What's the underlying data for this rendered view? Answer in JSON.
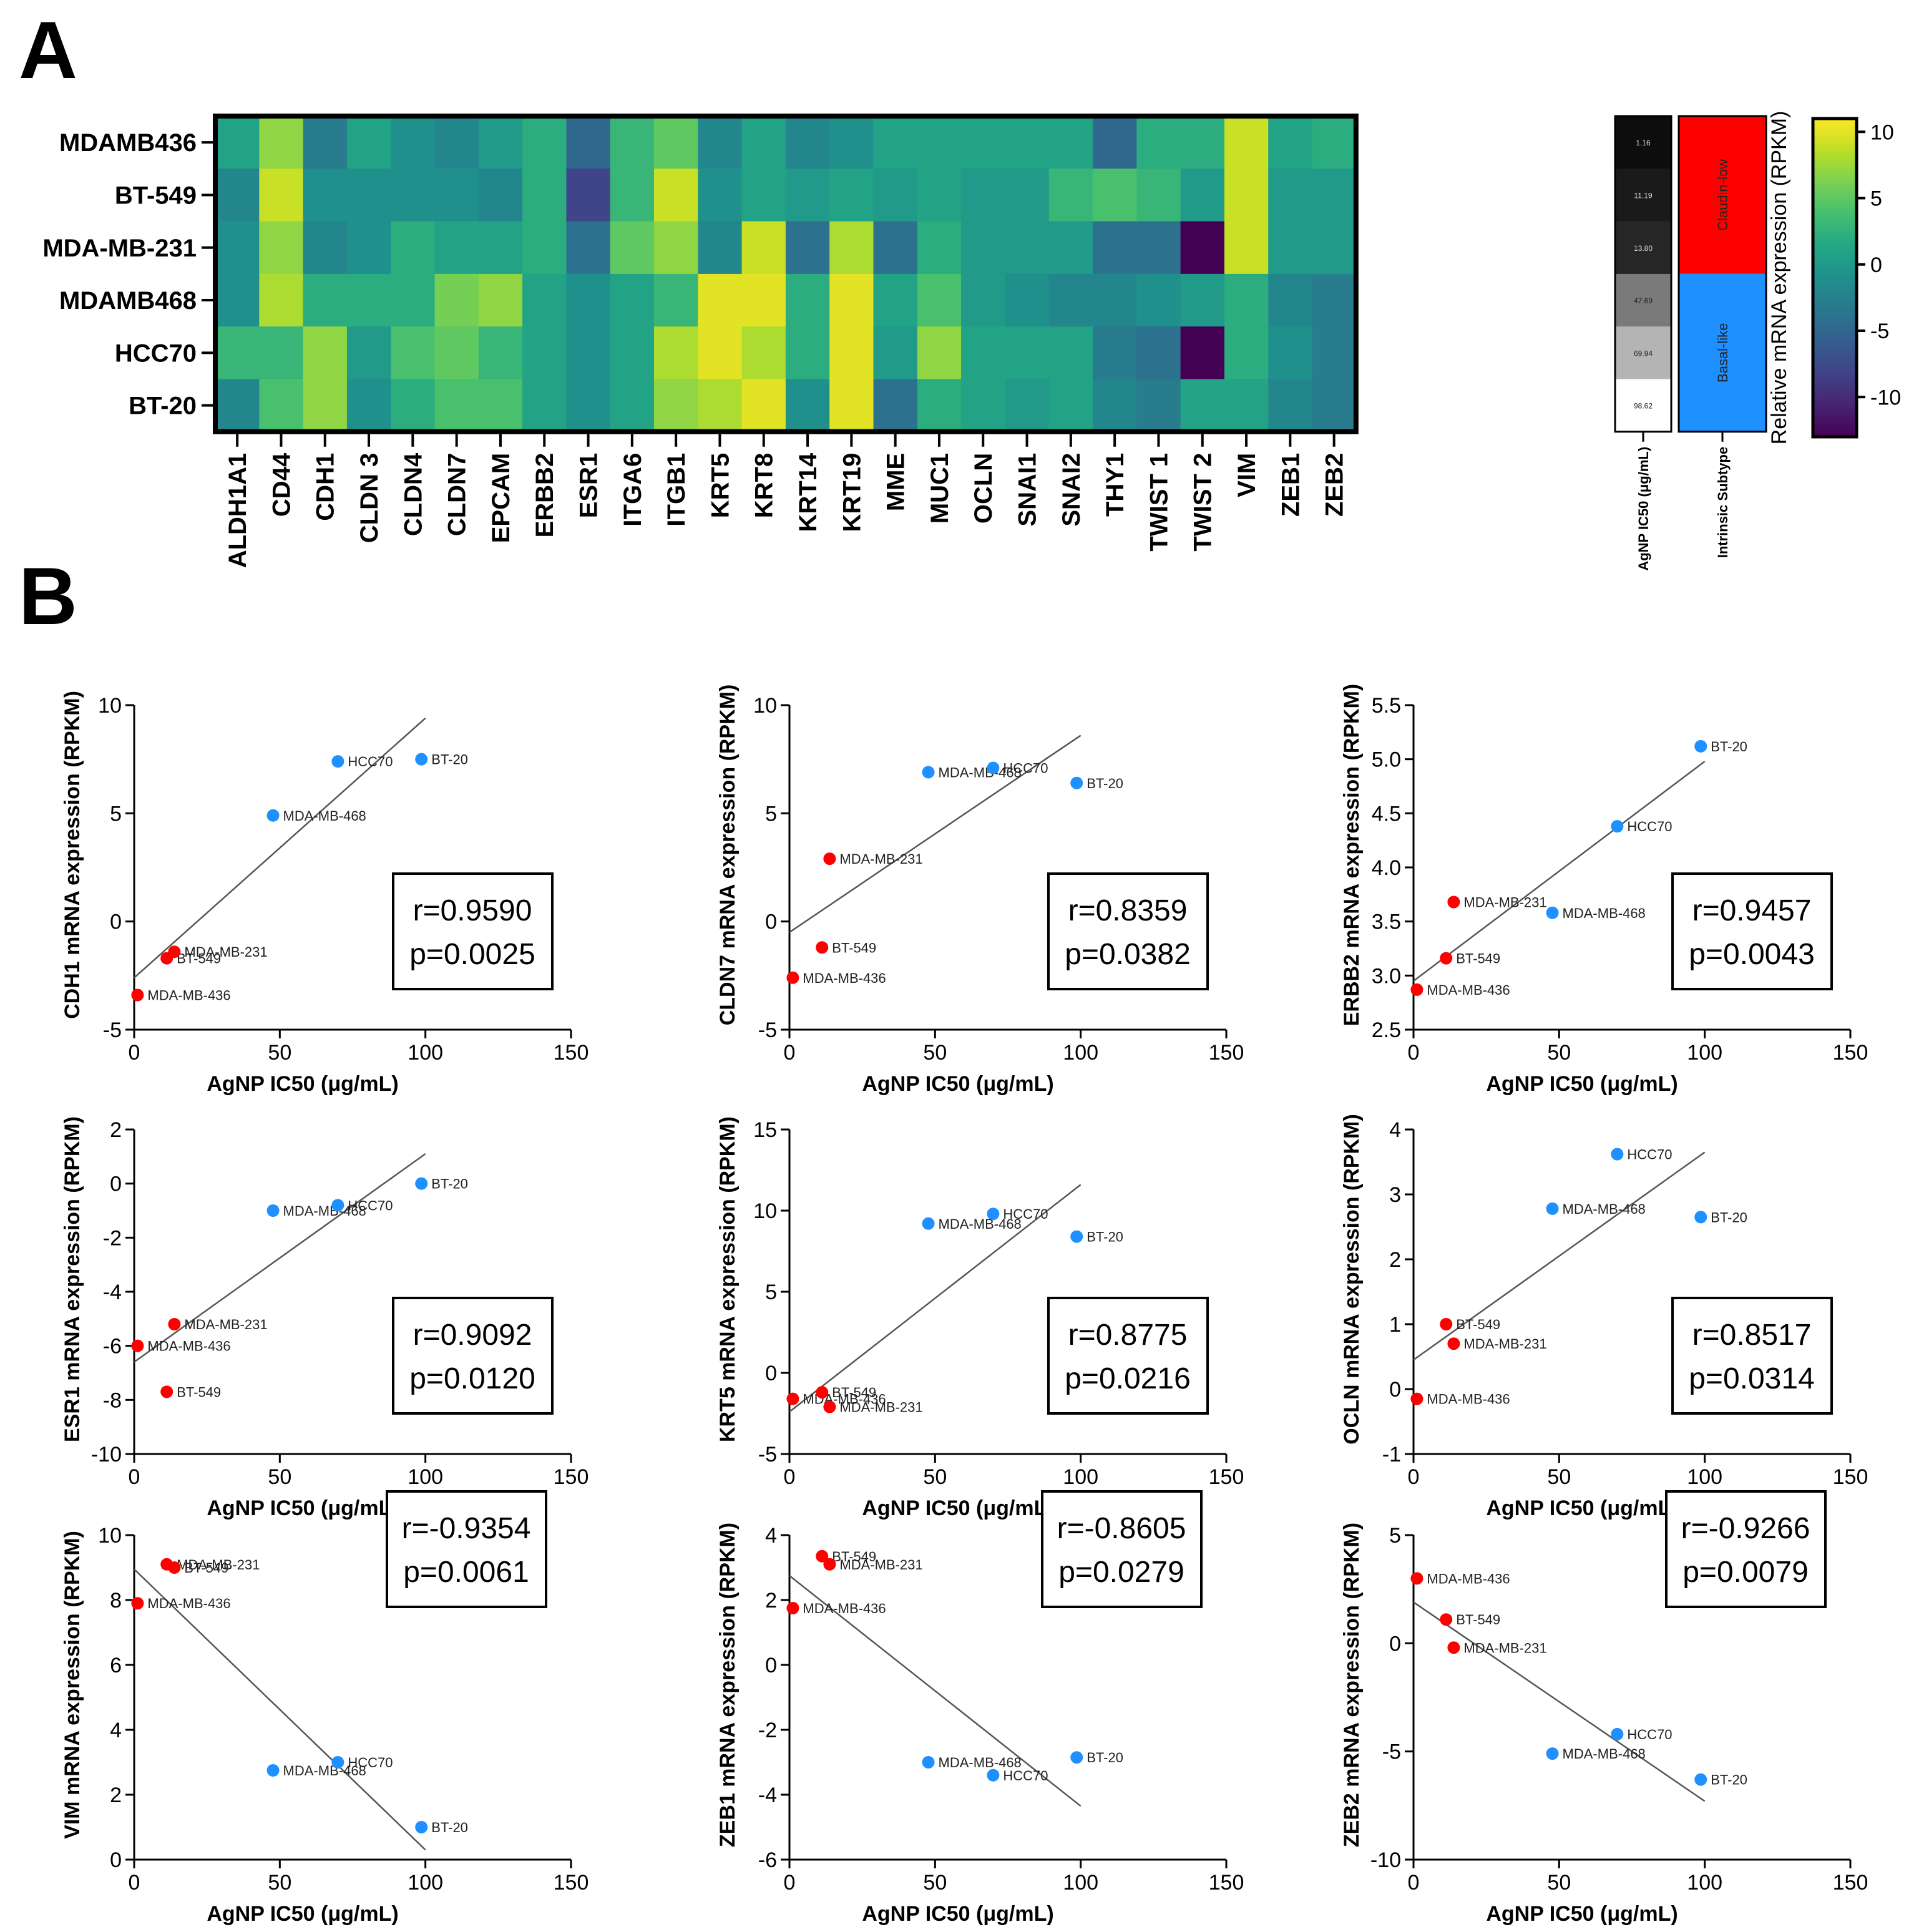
{
  "panel_a_label": "A",
  "panel_b_label": "B",
  "chart_data": [
    {
      "type": "heatmap",
      "rows": [
        "MDAMB436",
        "BT-549",
        "MDA-MB-231",
        "MDAMB468",
        "HCC70",
        "BT-20"
      ],
      "columns": [
        "ALDH1A1",
        "CD44",
        "CDH1",
        "CLDN 3",
        "CLDN4",
        "CLDN7",
        "EPCAM",
        "ERBB2",
        "ESR1",
        "ITGA6",
        "ITGB1",
        "KRT5",
        "KRT8",
        "KRT14",
        "KRT19",
        "MME",
        "MUC1",
        "OCLN",
        "SNAI1",
        "SNAI2",
        "THY1",
        "TWIST 1",
        "TWIST 2",
        "VIM",
        "ZEB1",
        "ZEB2"
      ],
      "values": [
        [
          1,
          7,
          -3,
          1,
          -1,
          -2,
          0,
          2,
          -5,
          3,
          5,
          -2,
          1,
          -2,
          -1,
          1,
          1,
          1,
          1,
          1,
          -5,
          2,
          2,
          9,
          1,
          2
        ],
        [
          -2,
          9,
          -1,
          -1,
          -1,
          -1,
          -2,
          2,
          -8,
          3,
          9,
          -1,
          1,
          0,
          1,
          0,
          1,
          0,
          0,
          3,
          4,
          3,
          0,
          9,
          0,
          0
        ],
        [
          -1,
          7,
          -2,
          -1,
          2,
          1,
          1,
          2,
          -4,
          5,
          7,
          -2,
          9,
          -4,
          8,
          -4,
          2,
          0,
          0,
          0,
          -4,
          -4,
          -13,
          9,
          0,
          0
        ],
        [
          -1,
          8,
          2,
          2,
          2,
          6,
          7,
          1,
          -1,
          1,
          3,
          10,
          10,
          2,
          10,
          1,
          4,
          0,
          -1,
          -2,
          -2,
          -1,
          0,
          2,
          -2,
          -3
        ],
        [
          3,
          3,
          7,
          0,
          4,
          5,
          3,
          1,
          -1,
          1,
          8,
          10,
          8,
          2,
          10,
          0,
          7,
          1,
          1,
          1,
          -3,
          -4,
          -13,
          2,
          -1,
          -3
        ],
        [
          -2,
          4,
          7,
          -1,
          2,
          4,
          4,
          1,
          -1,
          1,
          7,
          8,
          10,
          -1,
          10,
          -4,
          2,
          1,
          0,
          1,
          -2,
          -3,
          1,
          1,
          -2,
          -3
        ]
      ],
      "colorbar": {
        "label": "Relative mRNA expression (RPKM)",
        "ticks": [
          "10",
          "5",
          "0",
          "-5",
          "-10"
        ],
        "range": [
          -13,
          11
        ]
      },
      "ic50": {
        "label": "AgNP IC50 (μg/mL)",
        "values": [
          "1.16",
          "11.19",
          "13.80",
          "47.69",
          "69.94",
          "98.62"
        ],
        "colors": [
          "#0d0d0d",
          "#1a1a1a",
          "#262626",
          "#7a7a7a",
          "#b4b4b4",
          "#ffffff"
        ]
      },
      "subtype": {
        "label": "Intrinsic Subtype",
        "groups": [
          {
            "name": "Claudin-low",
            "color": "#ff0000",
            "rows": 3
          },
          {
            "name": "Basal-like",
            "color": "#1e90ff",
            "rows": 3
          }
        ]
      }
    },
    {
      "type": "scatter",
      "gene": "CDH1",
      "ylabel": "CDH1 mRNA expression (RPKM)",
      "xlabel": "AgNP IC50 (μg/mL)",
      "xlim": [
        0,
        150
      ],
      "ylim": [
        -5,
        10
      ],
      "yticks": [
        -5,
        0,
        5,
        10
      ],
      "r": "r=0.9590",
      "p": "p=0.0025",
      "box": "right",
      "points": [
        {
          "x": 1.16,
          "y": -3.4,
          "label": "MDA-MB-436",
          "color": "red"
        },
        {
          "x": 11.19,
          "y": -1.7,
          "label": "BT-549",
          "color": "red"
        },
        {
          "x": 13.8,
          "y": -1.4,
          "label": "MDA-MB-231",
          "color": "red"
        },
        {
          "x": 47.69,
          "y": 4.9,
          "label": "MDA-MB-468",
          "color": "blue"
        },
        {
          "x": 69.94,
          "y": 7.4,
          "label": "HCC70",
          "color": "blue"
        },
        {
          "x": 98.62,
          "y": 7.5,
          "label": "BT-20",
          "color": "blue"
        }
      ],
      "fit": [
        [
          0,
          -2.6
        ],
        [
          100,
          9.4
        ]
      ]
    },
    {
      "type": "scatter",
      "gene": "CLDN7",
      "ylabel": "CLDN7 mRNA expression (RPKM)",
      "xlabel": "AgNP IC50 (μg/mL)",
      "xlim": [
        0,
        150
      ],
      "ylim": [
        -5,
        10
      ],
      "yticks": [
        -5,
        0,
        5,
        10
      ],
      "r": "r=0.8359",
      "p": "p=0.0382",
      "box": "right",
      "points": [
        {
          "x": 1.16,
          "y": -2.6,
          "label": "MDA-MB-436",
          "color": "red"
        },
        {
          "x": 11.19,
          "y": -1.2,
          "label": "BT-549",
          "color": "red"
        },
        {
          "x": 13.8,
          "y": 2.9,
          "label": "MDA-MB-231",
          "color": "red"
        },
        {
          "x": 47.69,
          "y": 6.9,
          "label": "MDA-MB-468",
          "color": "blue"
        },
        {
          "x": 69.94,
          "y": 7.1,
          "label": "HCC70",
          "color": "blue"
        },
        {
          "x": 98.62,
          "y": 6.4,
          "label": "BT-20",
          "color": "blue"
        }
      ],
      "fit": [
        [
          0,
          -0.5
        ],
        [
          100,
          8.6
        ]
      ]
    },
    {
      "type": "scatter",
      "gene": "ERBB2",
      "ylabel": "ERBB2 mRNA expression (RPKM)",
      "xlabel": "AgNP IC50 (μg/mL)",
      "xlim": [
        0,
        150
      ],
      "ylim": [
        2.5,
        5.5
      ],
      "yticks": [
        2.5,
        3.0,
        3.5,
        4.0,
        4.5,
        5.0,
        5.5
      ],
      "r": "r=0.9457",
      "p": "p=0.0043",
      "box": "right",
      "points": [
        {
          "x": 1.16,
          "y": 2.87,
          "label": "MDA-MB-436",
          "color": "red"
        },
        {
          "x": 11.19,
          "y": 3.16,
          "label": "BT-549",
          "color": "red"
        },
        {
          "x": 13.8,
          "y": 3.68,
          "label": "MDA-MB-231",
          "color": "red"
        },
        {
          "x": 47.69,
          "y": 3.58,
          "label": "MDA-MB-468",
          "color": "blue"
        },
        {
          "x": 69.94,
          "y": 4.38,
          "label": "HCC70",
          "color": "blue"
        },
        {
          "x": 98.62,
          "y": 5.12,
          "label": "BT-20",
          "color": "blue"
        }
      ],
      "fit": [
        [
          0,
          2.95
        ],
        [
          100,
          4.98
        ]
      ]
    },
    {
      "type": "scatter",
      "gene": "ESR1",
      "ylabel": "ESR1 mRNA expression (RPKM)",
      "xlabel": "AgNP IC50 (μg/mL)",
      "xlim": [
        0,
        150
      ],
      "ylim": [
        -10,
        2
      ],
      "yticks": [
        -10,
        -8,
        -6,
        -4,
        -2,
        0,
        2
      ],
      "r": "r=0.9092",
      "p": "p=0.0120",
      "box": "right",
      "points": [
        {
          "x": 1.16,
          "y": -6.0,
          "label": "MDA-MB-436",
          "color": "red"
        },
        {
          "x": 11.19,
          "y": -7.7,
          "label": "BT-549",
          "color": "red"
        },
        {
          "x": 13.8,
          "y": -5.2,
          "label": "MDA-MB-231",
          "color": "red"
        },
        {
          "x": 47.69,
          "y": -1.0,
          "label": "MDA-MB-468",
          "color": "blue"
        },
        {
          "x": 69.94,
          "y": -0.8,
          "label": "HCC70",
          "color": "blue"
        },
        {
          "x": 98.62,
          "y": 0.0,
          "label": "BT-20",
          "color": "blue"
        }
      ],
      "fit": [
        [
          0,
          -6.6
        ],
        [
          100,
          1.1
        ]
      ]
    },
    {
      "type": "scatter",
      "gene": "KRT5",
      "ylabel": "KRT5 mRNA expression (RPKM)",
      "xlabel": "AgNP IC50 (μg/mL)",
      "xlim": [
        0,
        150
      ],
      "ylim": [
        -5,
        15
      ],
      "yticks": [
        -5,
        0,
        5,
        10,
        15
      ],
      "r": "r=0.8775",
      "p": "p=0.0216",
      "box": "right",
      "points": [
        {
          "x": 1.16,
          "y": -1.6,
          "label": "MDA-MB-436",
          "color": "red"
        },
        {
          "x": 11.19,
          "y": -1.2,
          "label": "BT-549",
          "color": "red"
        },
        {
          "x": 13.8,
          "y": -2.1,
          "label": "MDA-MB-231",
          "color": "red"
        },
        {
          "x": 47.69,
          "y": 9.2,
          "label": "MDA-MB-468",
          "color": "blue"
        },
        {
          "x": 69.94,
          "y": 9.8,
          "label": "HCC70",
          "color": "blue"
        },
        {
          "x": 98.62,
          "y": 8.4,
          "label": "BT-20",
          "color": "blue"
        }
      ],
      "fit": [
        [
          0,
          -2.4
        ],
        [
          100,
          11.6
        ]
      ]
    },
    {
      "type": "scatter",
      "gene": "OCLN",
      "ylabel": "OCLN mRNA expression (RPKM)",
      "xlabel": "AgNP IC50 (μg/mL)",
      "xlim": [
        0,
        150
      ],
      "ylim": [
        -1,
        4
      ],
      "yticks": [
        -1,
        0,
        1,
        2,
        3,
        4
      ],
      "r": "r=0.8517",
      "p": "p=0.0314",
      "box": "right",
      "points": [
        {
          "x": 1.16,
          "y": -0.15,
          "label": "MDA-MB-436",
          "color": "red"
        },
        {
          "x": 11.19,
          "y": 1.0,
          "label": "BT-549",
          "color": "red"
        },
        {
          "x": 13.8,
          "y": 0.7,
          "label": "MDA-MB-231",
          "color": "red"
        },
        {
          "x": 47.69,
          "y": 2.78,
          "label": "MDA-MB-468",
          "color": "blue"
        },
        {
          "x": 69.94,
          "y": 3.62,
          "label": "HCC70",
          "color": "blue"
        },
        {
          "x": 98.62,
          "y": 2.65,
          "label": "BT-20",
          "color": "blue"
        }
      ],
      "fit": [
        [
          0,
          0.45
        ],
        [
          100,
          3.65
        ]
      ]
    },
    {
      "type": "scatter",
      "gene": "VIM",
      "ylabel": "VIM mRNA expression (RPKM)",
      "xlabel": "AgNP IC50 (μg/mL)",
      "xlim": [
        0,
        150
      ],
      "ylim": [
        0,
        10
      ],
      "yticks": [
        0,
        2,
        4,
        6,
        8,
        10
      ],
      "r": "r=-0.9354",
      "p": "p=0.0061",
      "box": "right",
      "points": [
        {
          "x": 1.16,
          "y": 7.9,
          "label": "MDA-MB-436",
          "color": "red"
        },
        {
          "x": 11.19,
          "y": 9.1,
          "label": "MDA-MB-231",
          "color": "red"
        },
        {
          "x": 13.8,
          "y": 9.0,
          "label": "BT-549",
          "color": "red"
        },
        {
          "x": 47.69,
          "y": 2.75,
          "label": "MDA-MB-468",
          "color": "blue"
        },
        {
          "x": 69.94,
          "y": 3.0,
          "label": "HCC70",
          "color": "blue"
        },
        {
          "x": 98.62,
          "y": 1.0,
          "label": "BT-20",
          "color": "blue"
        }
      ],
      "fit": [
        [
          0,
          8.95
        ],
        [
          100,
          0.3
        ]
      ]
    },
    {
      "type": "scatter",
      "gene": "ZEB1",
      "ylabel": "ZEB1 mRNA expression (RPKM)",
      "xlabel": "AgNP IC50 (μg/mL)",
      "xlim": [
        0,
        150
      ],
      "ylim": [
        -6,
        4
      ],
      "yticks": [
        -6,
        -4,
        -2,
        0,
        2,
        4
      ],
      "r": "r=-0.8605",
      "p": "p=0.0279",
      "box": "right",
      "points": [
        {
          "x": 1.16,
          "y": 1.75,
          "label": "MDA-MB-436",
          "color": "red"
        },
        {
          "x": 11.19,
          "y": 3.35,
          "label": "BT-549",
          "color": "red"
        },
        {
          "x": 13.8,
          "y": 3.1,
          "label": "MDA-MB-231",
          "color": "red"
        },
        {
          "x": 47.69,
          "y": -3.0,
          "label": "MDA-MB-468",
          "color": "blue"
        },
        {
          "x": 69.94,
          "y": -3.4,
          "label": "HCC70",
          "color": "blue"
        },
        {
          "x": 98.62,
          "y": -2.85,
          "label": "BT-20",
          "color": "blue"
        }
      ],
      "fit": [
        [
          0,
          2.75
        ],
        [
          100,
          -4.35
        ]
      ]
    },
    {
      "type": "scatter",
      "gene": "ZEB2",
      "ylabel": "ZEB2 mRNA expression (RPKM)",
      "xlabel": "AgNP IC50 (μg/mL)",
      "xlim": [
        0,
        150
      ],
      "ylim": [
        -10,
        5
      ],
      "yticks": [
        -10,
        -5,
        0,
        5
      ],
      "r": "r=-0.9266",
      "p": "p=0.0079",
      "box": "right",
      "points": [
        {
          "x": 1.16,
          "y": 3.0,
          "label": "MDA-MB-436",
          "color": "red"
        },
        {
          "x": 11.19,
          "y": 1.1,
          "label": "BT-549",
          "color": "red"
        },
        {
          "x": 13.8,
          "y": -0.2,
          "label": "MDA-MB-231",
          "color": "red"
        },
        {
          "x": 47.69,
          "y": -5.1,
          "label": "MDA-MB-468",
          "color": "blue"
        },
        {
          "x": 69.94,
          "y": -4.2,
          "label": "HCC70",
          "color": "blue"
        },
        {
          "x": 98.62,
          "y": -6.3,
          "label": "BT-20",
          "color": "blue"
        }
      ],
      "fit": [
        [
          0,
          1.9
        ],
        [
          100,
          -7.3
        ]
      ]
    }
  ],
  "colors": {
    "red": "#ff0000",
    "blue": "#1e90ff",
    "fit_line": "#555555"
  }
}
